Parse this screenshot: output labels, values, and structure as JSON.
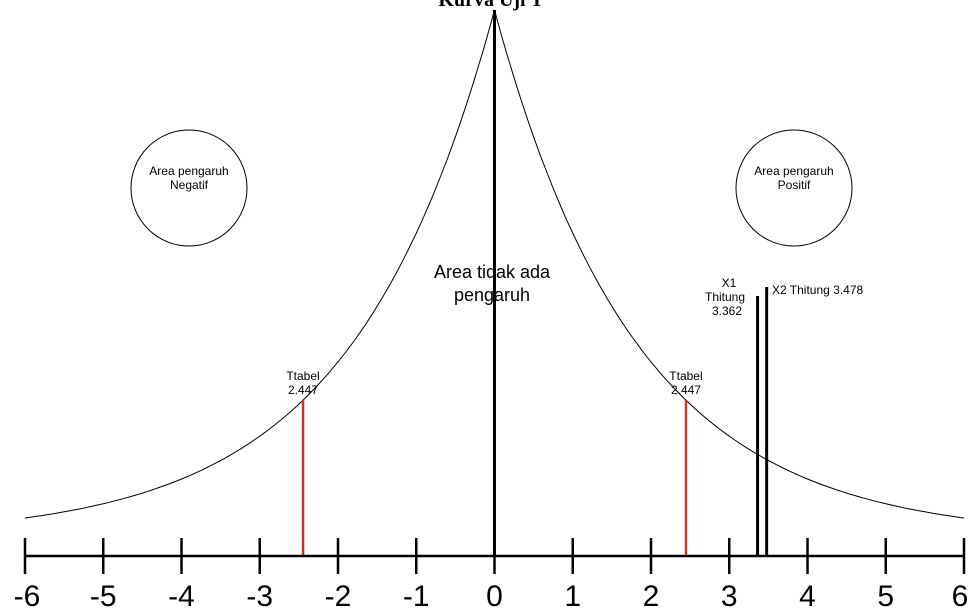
{
  "title": "Kurva Uji T",
  "axis": {
    "ticks": [
      -6,
      -5,
      -4,
      -3,
      -2,
      -1,
      0,
      1,
      2,
      3,
      4,
      5,
      6
    ],
    "tick_labels": [
      "-6",
      "-5",
      "-4",
      "-3",
      "-2",
      "-1",
      "0",
      "1",
      "2",
      "3",
      "4",
      "5",
      "6"
    ]
  },
  "regions": {
    "negative": [
      "Area pengaruh",
      "Negatif"
    ],
    "positive": [
      "Area pengaruh",
      "Positif"
    ],
    "none": [
      "Area tidak ada",
      "pengaruh"
    ]
  },
  "ttabel": {
    "value": 2.447,
    "left_label": [
      "Ttabel",
      "2.447"
    ],
    "right_label": [
      "Ttabel",
      "2.447"
    ],
    "color": "#c0392b"
  },
  "thitung": {
    "x1": {
      "value": 3.362,
      "label": [
        "X1",
        "Thitung",
        "3.362"
      ]
    },
    "x2": {
      "value": 3.478,
      "label": "X2 Thitung 3.478"
    }
  },
  "colors": {
    "line": "#000000",
    "ttabel": "#c0392b"
  }
}
